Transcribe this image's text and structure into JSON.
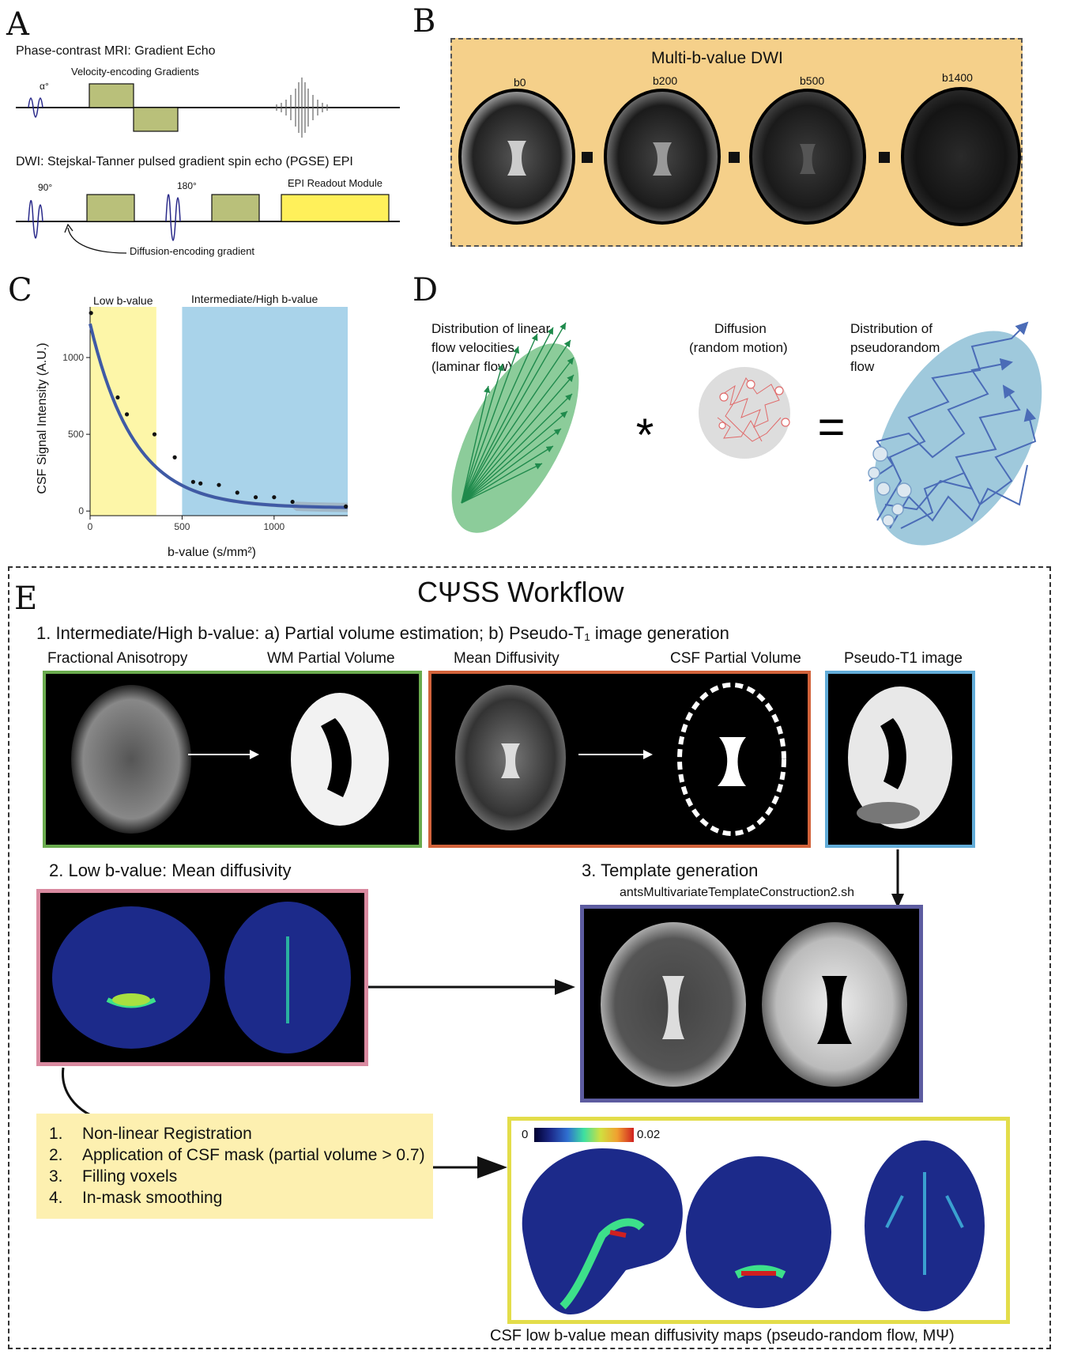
{
  "panel_labels": {
    "a": "A",
    "b": "B",
    "c": "C",
    "d": "D",
    "e": "E"
  },
  "panel_a": {
    "title1": "Phase-contrast MRI: Gradient Echo",
    "velocity_label": "Velocity-encoding Gradients",
    "alpha_label": "α°",
    "title2": "DWI: Stejskal-Tanner pulsed gradient spin echo (PGSE) EPI",
    "deg90": "90°",
    "deg180": "180°",
    "epi_label": "EPI Readout Module",
    "diffusion_label": "Diffusion-encoding gradient",
    "colors": {
      "gradient": "#b9c07a",
      "epi": "#fff05a",
      "pulse": "#2a2a8a"
    }
  },
  "panel_b": {
    "title": "Multi-b-value DWI",
    "images": [
      {
        "label": "b0",
        "level": 1.0
      },
      {
        "label": "b200",
        "level": 0.75
      },
      {
        "label": "b500",
        "level": 0.5
      },
      {
        "label": "b1400",
        "level": 0.3
      }
    ],
    "background": "#f5d08a"
  },
  "chart_data": {
    "type": "scatter",
    "xlabel": "b-value (s/mm²)",
    "ylabel": "CSF Signal Intensity (A.U.)",
    "xlim": [
      0,
      1400
    ],
    "ylim": [
      -30,
      1330
    ],
    "xticks": [
      0,
      500,
      1000
    ],
    "yticks": [
      0,
      500,
      1000
    ],
    "regions": [
      {
        "label": "Low b-value",
        "x": [
          0,
          360
        ],
        "color": "#fdf6a8"
      },
      {
        "label": "Intermediate/High b-value",
        "x": [
          500,
          1400
        ],
        "color": "#a9d3ea"
      }
    ],
    "points": [
      [
        5,
        1290
      ],
      [
        150,
        740
      ],
      [
        200,
        630
      ],
      [
        350,
        500
      ],
      [
        460,
        350
      ],
      [
        560,
        190
      ],
      [
        600,
        180
      ],
      [
        700,
        170
      ],
      [
        800,
        120
      ],
      [
        900,
        90
      ],
      [
        1000,
        90
      ],
      [
        1100,
        60
      ],
      [
        1390,
        30
      ]
    ],
    "fit": {
      "model": "exponential",
      "a": 1200,
      "k": 0.0042,
      "c": 20
    },
    "fit_color": "#3f5aa5"
  },
  "panel_d": {
    "label_left": [
      "Distribution of linear",
      "flow velocities",
      "(laminar flow)"
    ],
    "label_mid": [
      "Diffusion",
      "(random motion)"
    ],
    "label_right": [
      "Distribution of",
      "pseudorandom",
      "flow"
    ],
    "star": "*",
    "equals": "="
  },
  "panel_e": {
    "title": "CΨSS Workflow",
    "step1": "1. Intermediate/High b-value: a) Partial volume estimation; b) Pseudo-T₁ image generation",
    "labels_row1": [
      "Fractional Anisotropy",
      "WM Partial Volume",
      "Mean Diffusivity",
      "CSF Partial Volume",
      "Pseudo-T1 image"
    ],
    "step2": "2. Low b-value: Mean diffusivity",
    "step3": "3. Template generation",
    "template_cmd": "antsMultivariateTemplateConstruction2.sh",
    "list": [
      {
        "num": "1.",
        "text": "Non-linear Registration"
      },
      {
        "num": "2.",
        "text": "Application of CSF mask (partial volume > 0.7)"
      },
      {
        "num": "3.",
        "text": "Filling voxels"
      },
      {
        "num": "4.",
        "text": "In-mask smoothing"
      }
    ],
    "colorbar_min": "0",
    "colorbar_max": "0.02",
    "caption": "CSF low b-value mean diffusivity maps (pseudo-random flow, MΨ)",
    "frame_colors": {
      "green": "#6aab4e",
      "orange": "#d2623a",
      "blue": "#62acd8",
      "pink": "#d98aa0",
      "purple": "#5d5ca0",
      "yellow": "#e3dd4a"
    }
  }
}
